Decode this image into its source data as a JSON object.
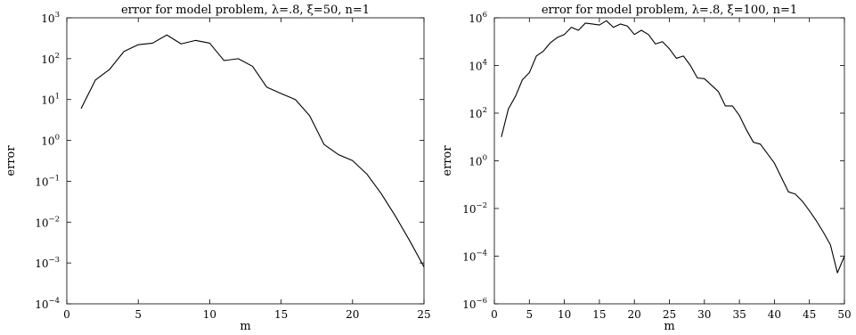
{
  "chart_data": [
    {
      "type": "line",
      "title": "error for model problem, λ=.8, ξ=50, n=1",
      "xlabel": "m",
      "ylabel": "error",
      "xlim": [
        0,
        25
      ],
      "ylim": [
        0.0001,
        1000
      ],
      "yscale": "log",
      "xticks": [
        0,
        5,
        10,
        15,
        20,
        25
      ],
      "yticks": [
        "10^-4",
        "10^-3",
        "10^-2",
        "10^-1",
        "10^0",
        "10^1",
        "10^2",
        "10^3"
      ],
      "grid": false,
      "series": [
        {
          "x": [
            1,
            2,
            3,
            4,
            5,
            6,
            7,
            8,
            9,
            10,
            11,
            12,
            13,
            14,
            15,
            16,
            17,
            18,
            19,
            20,
            21,
            22,
            23,
            24,
            25
          ],
          "values": [
            6,
            30,
            55,
            150,
            220,
            240,
            380,
            230,
            280,
            240,
            90,
            100,
            65,
            20,
            14,
            10,
            4,
            0.8,
            0.45,
            0.32,
            0.15,
            0.05,
            0.014,
            0.0035,
            0.0008
          ]
        }
      ]
    },
    {
      "type": "line",
      "title": "error for model problem, λ=.8, ξ=100, n=1",
      "xlabel": "m",
      "ylabel": "error",
      "xlim": [
        0,
        50
      ],
      "ylim": [
        1e-06,
        1000000
      ],
      "yscale": "log",
      "xticks": [
        0,
        5,
        10,
        15,
        20,
        25,
        30,
        35,
        40,
        45,
        50
      ],
      "yticks": [
        "10^-6",
        "10^-4",
        "10^-2",
        "10^0",
        "10^2",
        "10^4",
        "10^6"
      ],
      "grid": false,
      "series": [
        {
          "x": [
            1,
            2,
            3,
            4,
            5,
            6,
            7,
            8,
            9,
            10,
            11,
            12,
            13,
            14,
            15,
            16,
            17,
            18,
            19,
            20,
            21,
            22,
            23,
            24,
            25,
            26,
            27,
            28,
            29,
            30,
            31,
            32,
            33,
            34,
            35,
            36,
            37,
            38,
            39,
            40,
            41,
            42,
            43,
            44,
            45,
            46,
            47,
            48,
            49,
            50
          ],
          "values": [
            10,
            150,
            500,
            2500,
            5000,
            25000,
            40000,
            90000,
            150000,
            200000,
            400000,
            300000,
            600000,
            550000,
            500000,
            750000,
            400000,
            550000,
            450000,
            200000,
            300000,
            200000,
            80000,
            100000,
            50000,
            20000,
            25000,
            10000,
            3000,
            2800,
            1500,
            800,
            200,
            200,
            80,
            20,
            6,
            5,
            2,
            0.8,
            0.2,
            0.05,
            0.04,
            0.02,
            0.008,
            0.003,
            0.001,
            0.0003,
            2e-05,
            0.0001
          ]
        }
      ]
    }
  ]
}
